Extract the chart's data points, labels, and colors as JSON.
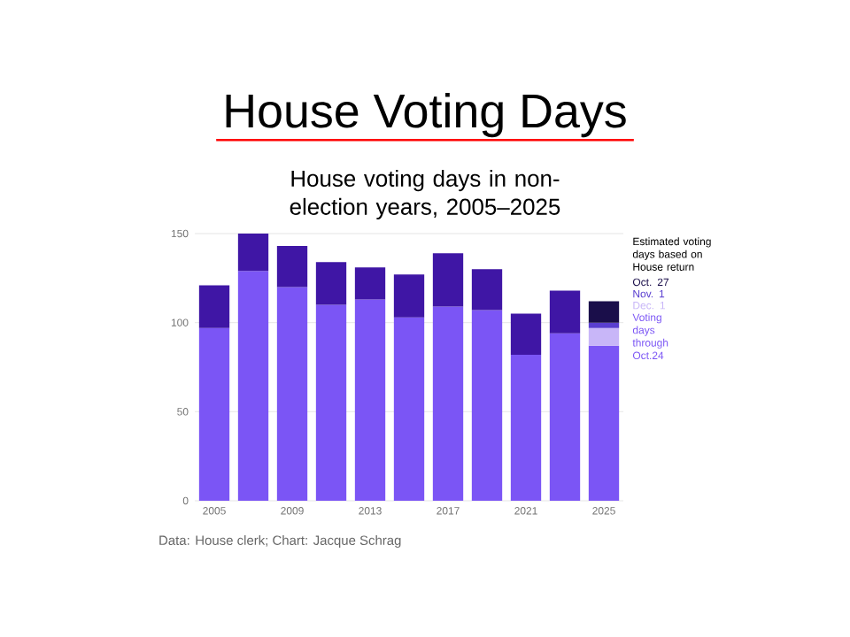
{
  "chart_data": {
    "type": "bar",
    "stacked": true,
    "title": "House Voting Days",
    "subtitle": "House voting days in non-election years, 2005–2025",
    "legend_title": "Estimated voting days based on House return",
    "categories": [
      "2005",
      null,
      "2009",
      null,
      "2013",
      null,
      "2017",
      null,
      "2021",
      null,
      "2025"
    ],
    "series": [
      {
        "name": "Voting days through Oct.24",
        "color": "#7b55f5",
        "values": [
          97,
          129,
          120,
          110,
          113,
          103,
          109,
          107,
          82,
          94,
          87
        ]
      },
      {
        "color": "#3f16a5",
        "values": [
          24,
          21,
          23,
          24,
          18,
          24,
          30,
          23,
          23,
          24,
          null
        ]
      },
      {
        "name": "Dec. 1",
        "color": "#c8b6f8",
        "values": [
          null,
          null,
          null,
          null,
          null,
          null,
          null,
          null,
          null,
          null,
          10
        ]
      },
      {
        "name": "Nov. 1",
        "color": "#5a3fd0",
        "values": [
          null,
          null,
          null,
          null,
          null,
          null,
          null,
          null,
          null,
          null,
          3
        ]
      },
      {
        "name": "Oct. 27",
        "color": "#1a0e4a",
        "values": [
          null,
          null,
          null,
          null,
          null,
          null,
          null,
          null,
          null,
          null,
          12
        ]
      }
    ],
    "ylim": [
      0,
      150
    ],
    "yticks": [
      0,
      50,
      100,
      150
    ],
    "grid": "y",
    "legend": "right",
    "annotations": [
      "Data: House clerk; Chart: Jacque Schrag"
    ]
  }
}
